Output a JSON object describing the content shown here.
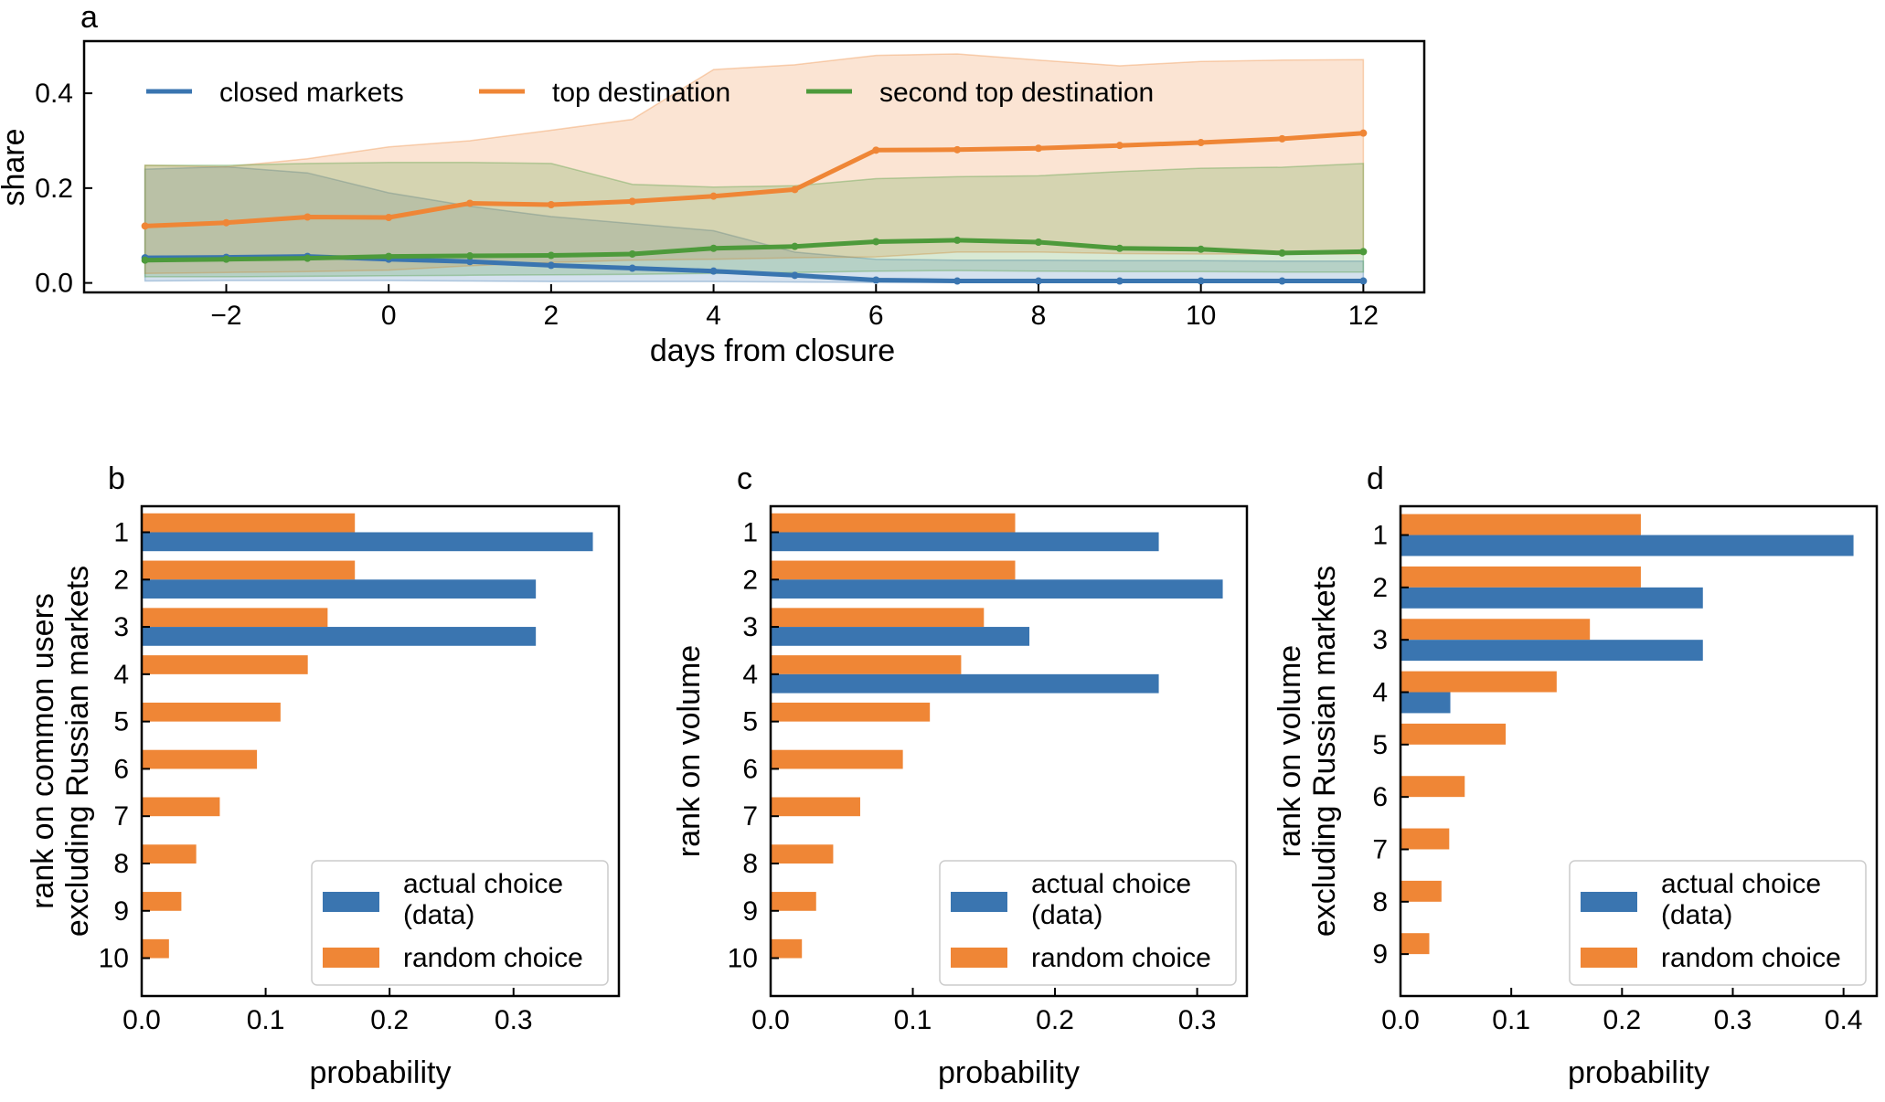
{
  "colors": {
    "closed": "#3a75b0",
    "top": "#ef8636",
    "second": "#4d9a3b",
    "bar_actual": "#3a75b0",
    "bar_random": "#ef8636"
  },
  "chart_data": [
    {
      "panel": "a",
      "type": "line",
      "title": "",
      "xlabel": "days from closure",
      "ylabel": "share",
      "xlim": [
        -3.75,
        12.75
      ],
      "ylim": [
        -0.02,
        0.51
      ],
      "xticks": [
        -2,
        0,
        2,
        4,
        6,
        8,
        10,
        12
      ],
      "xtick_labels": [
        "−2",
        "0",
        "2",
        "4",
        "6",
        "8",
        "10",
        "12"
      ],
      "yticks": [
        0.0,
        0.2,
        0.4
      ],
      "ytick_labels": [
        "0.0",
        "0.2",
        "0.4"
      ],
      "legend": {
        "position": "top",
        "ncol": 3
      },
      "x": [
        -3,
        -2,
        -1,
        0,
        1,
        2,
        3,
        4,
        5,
        6,
        7,
        8,
        9,
        10,
        11,
        12
      ],
      "series": [
        {
          "name": "closed markets",
          "key": "closed",
          "values": [
            0.053,
            0.054,
            0.056,
            0.05,
            0.045,
            0.037,
            0.031,
            0.025,
            0.016,
            0.006,
            0.004,
            0.004,
            0.004,
            0.004,
            0.004,
            0.004
          ],
          "upper": [
            0.24,
            0.245,
            0.232,
            0.19,
            0.162,
            0.14,
            0.125,
            0.11,
            0.065,
            0.05,
            0.048,
            0.048,
            0.047,
            0.047,
            0.046,
            0.046
          ],
          "lower": [
            0.004,
            0.005,
            0.005,
            0.005,
            0.004,
            0.003,
            0.003,
            0.003,
            0.002,
            0.001,
            0.001,
            0.001,
            0.001,
            0.001,
            0.001,
            0.001
          ]
        },
        {
          "name": "top destination",
          "key": "top",
          "values": [
            0.12,
            0.127,
            0.139,
            0.138,
            0.168,
            0.165,
            0.172,
            0.183,
            0.197,
            0.28,
            0.281,
            0.284,
            0.29,
            0.296,
            0.304,
            0.316
          ],
          "upper": [
            0.248,
            0.245,
            0.262,
            0.287,
            0.3,
            0.322,
            0.345,
            0.45,
            0.46,
            0.48,
            0.483,
            0.47,
            0.458,
            0.467,
            0.47,
            0.471
          ],
          "lower": [
            0.02,
            0.022,
            0.024,
            0.027,
            0.036,
            0.043,
            0.048,
            0.05,
            0.053,
            0.055,
            0.065,
            0.065,
            0.062,
            0.061,
            0.061,
            0.061
          ]
        },
        {
          "name": "second top destination",
          "key": "second",
          "values": [
            0.048,
            0.05,
            0.052,
            0.056,
            0.057,
            0.058,
            0.061,
            0.073,
            0.077,
            0.087,
            0.09,
            0.086,
            0.073,
            0.071,
            0.063,
            0.066
          ],
          "upper": [
            0.248,
            0.248,
            0.252,
            0.254,
            0.254,
            0.252,
            0.208,
            0.202,
            0.205,
            0.22,
            0.224,
            0.226,
            0.235,
            0.242,
            0.244,
            0.252
          ],
          "lower": [
            0.013,
            0.013,
            0.014,
            0.015,
            0.016,
            0.017,
            0.018,
            0.02,
            0.022,
            0.025,
            0.026,
            0.025,
            0.024,
            0.024,
            0.023,
            0.023
          ]
        }
      ]
    },
    {
      "panel": "b",
      "type": "bar",
      "orientation": "horizontal",
      "xlabel": "probability",
      "ylabel": [
        "rank on common users",
        "excluding Russian markets"
      ],
      "xlim": [
        0,
        0.385
      ],
      "xticks": [
        0.0,
        0.1,
        0.2,
        0.3
      ],
      "xtick_labels": [
        "0.0",
        "0.1",
        "0.2",
        "0.3"
      ],
      "categories": [
        "1",
        "2",
        "3",
        "4",
        "5",
        "6",
        "7",
        "8",
        "9",
        "10"
      ],
      "series": [
        {
          "name": "actual choice (data)",
          "key": "actual",
          "values": [
            0.364,
            0.318,
            0.318,
            0,
            0,
            0,
            0,
            0,
            0,
            0
          ]
        },
        {
          "name": "random choice",
          "key": "random",
          "values": [
            0.172,
            0.172,
            0.15,
            0.134,
            0.112,
            0.093,
            0.063,
            0.044,
            0.032,
            0.022
          ]
        }
      ],
      "legend": {
        "position": "lower-right",
        "labels": [
          [
            "actual choice",
            "(data)"
          ],
          [
            "random choice"
          ]
        ]
      }
    },
    {
      "panel": "c",
      "type": "bar",
      "orientation": "horizontal",
      "xlabel": "probability",
      "ylabel": [
        "rank on volume"
      ],
      "xlim": [
        0,
        0.335
      ],
      "xticks": [
        0.0,
        0.1,
        0.2,
        0.3
      ],
      "xtick_labels": [
        "0.0",
        "0.1",
        "0.2",
        "0.3"
      ],
      "categories": [
        "1",
        "2",
        "3",
        "4",
        "5",
        "6",
        "7",
        "8",
        "9",
        "10"
      ],
      "series": [
        {
          "name": "actual choice (data)",
          "key": "actual",
          "values": [
            0.273,
            0.318,
            0.182,
            0.273,
            0,
            0,
            0,
            0,
            0,
            0
          ]
        },
        {
          "name": "random choice",
          "key": "random",
          "values": [
            0.172,
            0.172,
            0.15,
            0.134,
            0.112,
            0.093,
            0.063,
            0.044,
            0.032,
            0.022
          ]
        }
      ],
      "legend": {
        "position": "lower-right",
        "labels": [
          [
            "actual choice",
            "(data)"
          ],
          [
            "random choice"
          ]
        ]
      }
    },
    {
      "panel": "d",
      "type": "bar",
      "orientation": "horizontal",
      "xlabel": "probability",
      "ylabel": [
        "rank on volume",
        "excluding Russian markets"
      ],
      "xlim": [
        0,
        0.43
      ],
      "xticks": [
        0.0,
        0.1,
        0.2,
        0.3,
        0.4
      ],
      "xtick_labels": [
        "0.0",
        "0.1",
        "0.2",
        "0.3",
        "0.4"
      ],
      "categories": [
        "1",
        "2",
        "3",
        "4",
        "5",
        "6",
        "7",
        "8",
        "9"
      ],
      "series": [
        {
          "name": "actual choice (data)",
          "key": "actual",
          "values": [
            0.409,
            0.273,
            0.273,
            0.045,
            0,
            0,
            0,
            0,
            0
          ]
        },
        {
          "name": "random choice",
          "key": "random",
          "values": [
            0.217,
            0.217,
            0.171,
            0.141,
            0.095,
            0.058,
            0.044,
            0.037,
            0.026
          ]
        }
      ],
      "legend": {
        "position": "lower-right",
        "labels": [
          [
            "actual choice",
            "(data)"
          ],
          [
            "random choice"
          ]
        ]
      }
    }
  ]
}
